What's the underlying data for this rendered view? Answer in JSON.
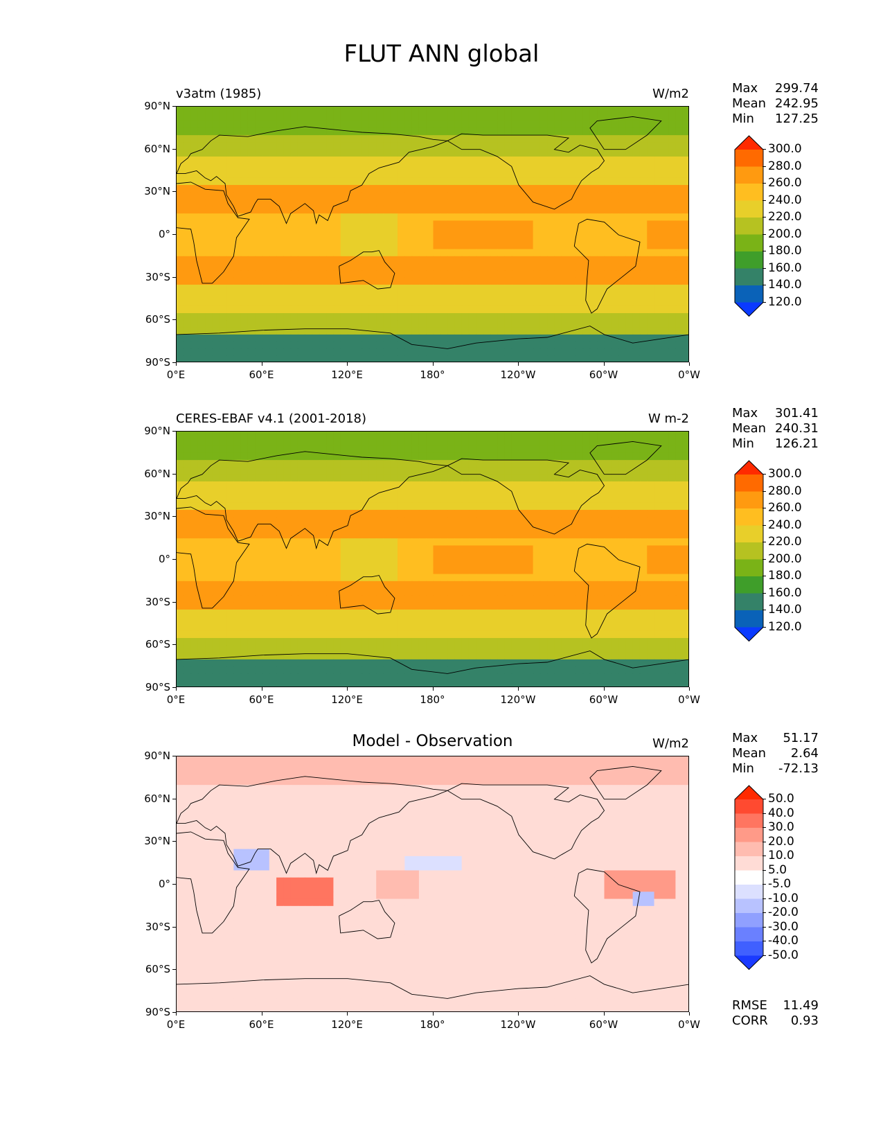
{
  "figure": {
    "title": "FLUT ANN global"
  },
  "axes": {
    "lat_ticks": [
      "90°N",
      "60°N",
      "30°N",
      "0°",
      "30°S",
      "60°S",
      "90°S"
    ],
    "lon_ticks": [
      "0°E",
      "60°E",
      "120°E",
      "180°",
      "120°W",
      "60°W",
      "0°W"
    ]
  },
  "panels": [
    {
      "id": "model",
      "left_label": "v3atm (1985)",
      "center_label": "",
      "units": "W/m2",
      "stats": [
        {
          "label": "Max",
          "value": "299.74"
        },
        {
          "label": "Mean",
          "value": "242.95"
        },
        {
          "label": "Min",
          "value": "127.25"
        }
      ],
      "colorbar": {
        "levels": [
          "300.0",
          "280.0",
          "260.0",
          "240.0",
          "220.0",
          "200.0",
          "180.0",
          "160.0",
          "140.0",
          "120.0"
        ],
        "colors": [
          "#ff2a00",
          "#ff6a00",
          "#ff9a10",
          "#ffbe20",
          "#e8cf2a",
          "#b6c221",
          "#7ab317",
          "#3f9e2a",
          "#348268",
          "#0a62b8",
          "#0a3aff"
        ]
      }
    },
    {
      "id": "obs",
      "left_label": "CERES-EBAF v4.1 (2001-2018)",
      "center_label": "",
      "units": "W m-2",
      "stats": [
        {
          "label": "Max",
          "value": "301.41"
        },
        {
          "label": "Mean",
          "value": "240.31"
        },
        {
          "label": "Min",
          "value": "126.21"
        }
      ],
      "colorbar": {
        "levels": [
          "300.0",
          "280.0",
          "260.0",
          "240.0",
          "220.0",
          "200.0",
          "180.0",
          "160.0",
          "140.0",
          "120.0"
        ],
        "colors": [
          "#ff2a00",
          "#ff6a00",
          "#ff9a10",
          "#ffbe20",
          "#e8cf2a",
          "#b6c221",
          "#7ab317",
          "#3f9e2a",
          "#348268",
          "#0a62b8",
          "#0a3aff"
        ]
      }
    },
    {
      "id": "diff",
      "left_label": "",
      "center_label": "Model - Observation",
      "units": "W/m2",
      "stats": [
        {
          "label": "Max",
          "value": "51.17"
        },
        {
          "label": "Mean",
          "value": "2.64"
        },
        {
          "label": "Min",
          "value": "-72.13"
        }
      ],
      "extra_stats": [
        {
          "label": "RMSE",
          "value": "11.49"
        },
        {
          "label": "CORR",
          "value": "0.93"
        }
      ],
      "colorbar": {
        "levels": [
          "50.0",
          "40.0",
          "30.0",
          "20.0",
          "10.0",
          "5.0",
          "-5.0",
          "-10.0",
          "-20.0",
          "-30.0",
          "-40.0",
          "-50.0"
        ],
        "colors": [
          "#ff2a00",
          "#ff4a30",
          "#ff7560",
          "#ff9a88",
          "#ffbcb0",
          "#ffdcd6",
          "#ffffff",
          "#dce0ff",
          "#b8c2ff",
          "#90a0ff",
          "#6a80ff",
          "#4060ff",
          "#1a3aff"
        ]
      }
    }
  ]
}
